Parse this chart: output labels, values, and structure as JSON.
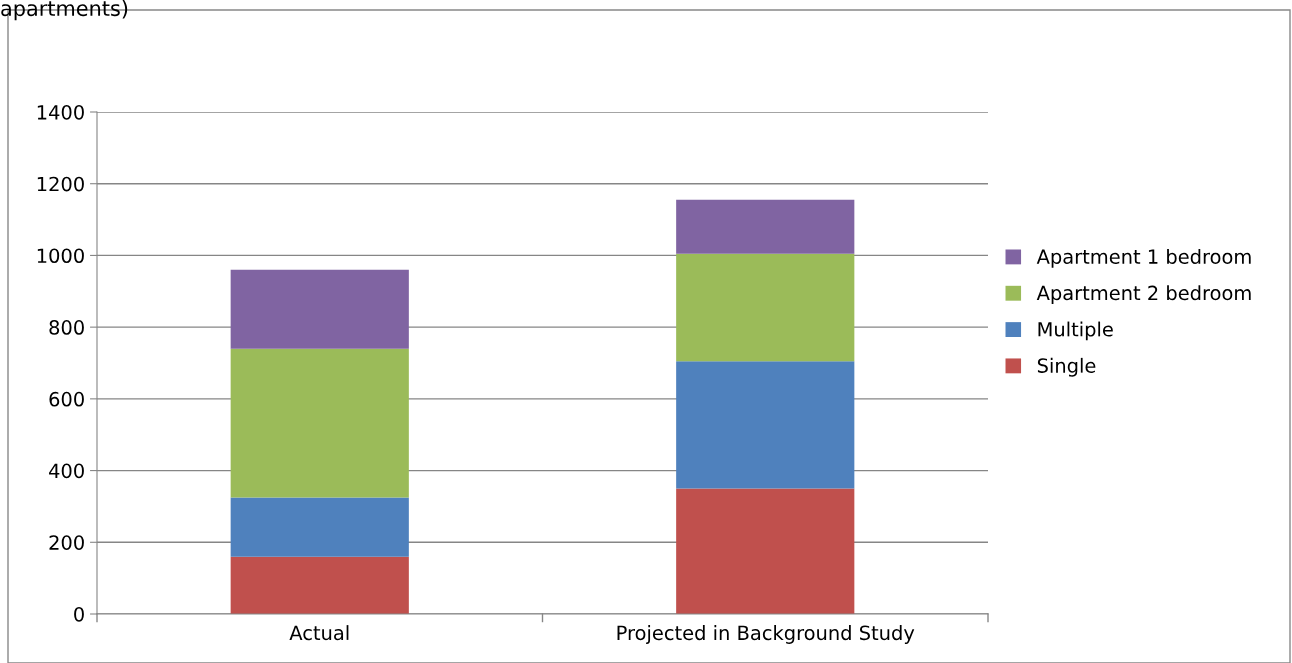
{
  "chart_data": {
    "type": "bar",
    "title": "apartments)",
    "stacked": true,
    "categories": [
      "Actual",
      "Projected in Background Study"
    ],
    "series": [
      {
        "name": "Single",
        "color": "#c0504d",
        "values": [
          160,
          350
        ]
      },
      {
        "name": "Multiple",
        "color": "#4f81bd",
        "values": [
          165,
          355
        ]
      },
      {
        "name": "Apartment 2 bedroom",
        "color": "#9bbb59",
        "values": [
          415,
          300
        ]
      },
      {
        "name": "Apartment 1 bedroom",
        "color": "#8064a2",
        "values": [
          220,
          150
        ]
      }
    ],
    "ylim": [
      0,
      1400
    ],
    "yticks": [
      0,
      200,
      400,
      600,
      800,
      1000,
      1200,
      1400
    ],
    "grid": "y",
    "legend": "right"
  }
}
